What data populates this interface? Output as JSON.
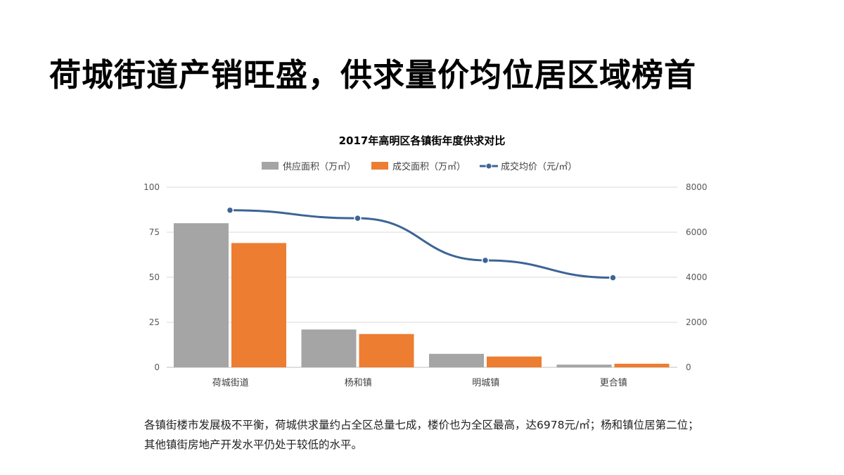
{
  "page": {
    "headline": "荷城街道产销旺盛，供求量价均位居区域榜首",
    "caption": "各镇街楼市发展极不平衡，荷城供求量约占全区总量七成，楼价也为全区最高，达6978元/㎡；杨和镇位居第二位；其他镇街房地产开发水平仍处于较低的水平。"
  },
  "chart_data": {
    "type": "bar",
    "title": "2017年高明区各镇街年度供求对比",
    "categories": [
      "荷城街道",
      "杨和镇",
      "明城镇",
      "更合镇"
    ],
    "series": [
      {
        "name": "供应面积（万㎡）",
        "type": "bar",
        "axis": "left",
        "color": "#a5a5a5",
        "values": [
          80,
          21,
          7.5,
          1.5
        ]
      },
      {
        "name": "成交面积（万㎡）",
        "type": "bar",
        "axis": "left",
        "color": "#ed7d31",
        "values": [
          69,
          18.5,
          6,
          2
        ]
      },
      {
        "name": "成交均价（元/㎡）",
        "type": "line",
        "axis": "right",
        "color": "#3c6496",
        "values": [
          6978,
          6620,
          4750,
          3980
        ]
      }
    ],
    "y_left": {
      "range": [
        0,
        100
      ],
      "ticks": [
        "0",
        "25",
        "50",
        "75",
        "100"
      ]
    },
    "y_right": {
      "range": [
        0,
        8000
      ],
      "ticks": [
        "0",
        "2000",
        "4000",
        "6000",
        "8000"
      ]
    },
    "legend_position": "top",
    "grid": true
  }
}
